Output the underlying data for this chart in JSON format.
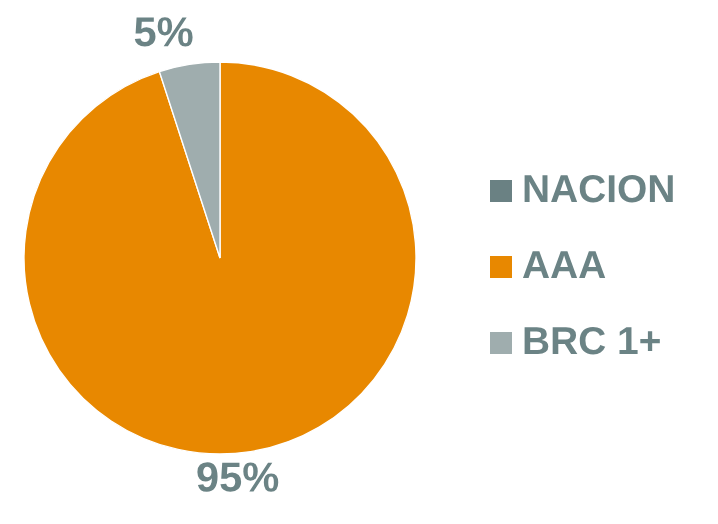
{
  "chart_data": {
    "type": "pie",
    "categories": [
      "NACION",
      "AAA",
      "BRC 1+"
    ],
    "values": [
      0,
      95,
      5
    ],
    "colors": [
      "#6a8183",
      "#e88800",
      "#9fadae"
    ],
    "value_labels": [
      null,
      "95%",
      "5%"
    ],
    "legend": "right"
  }
}
